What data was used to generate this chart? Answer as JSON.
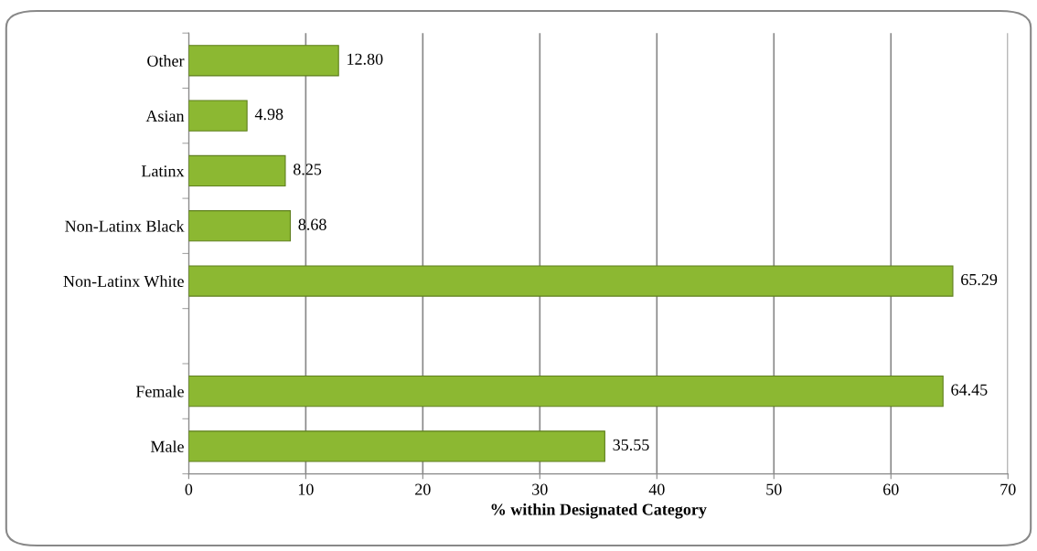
{
  "chart_data": {
    "type": "bar",
    "orientation": "horizontal",
    "xlabel": "% within Designated Category",
    "categories": [
      "Other",
      "Asian",
      "Latinx",
      "Non-Latinx Black",
      "Non-Latinx White",
      null,
      "Female",
      "Male"
    ],
    "values": [
      12.8,
      4.98,
      8.25,
      8.68,
      65.29,
      null,
      64.45,
      35.55
    ],
    "value_labels": [
      "12.80",
      "4.98",
      "8.25",
      "8.68",
      "65.29",
      null,
      "64.45",
      "35.55"
    ],
    "color": "#8cb832",
    "xlim": [
      0,
      70
    ],
    "xticks": [
      0,
      10,
      20,
      30,
      40,
      50,
      60,
      70
    ],
    "grid": "x",
    "legend": false
  }
}
